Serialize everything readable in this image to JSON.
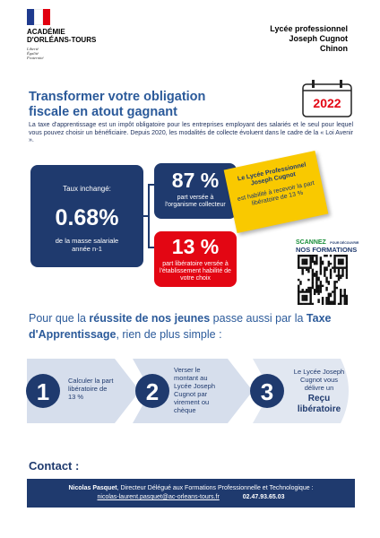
{
  "header": {
    "logo": {
      "line1": "ACADÉMIE",
      "line2": "D'ORLÉANS-TOURS",
      "motto": [
        "Liberté",
        "Égalité",
        "Fraternité"
      ]
    },
    "school": [
      "Lycée professionnel",
      "Joseph Cugnot",
      "Chinon"
    ]
  },
  "title": [
    "Transformer votre obligation",
    "fiscale en atout gagnant"
  ],
  "year": "2022",
  "intro": "La taxe d'apprentissage est un impôt obligatoire pour les entreprises employant des salariés et le seul pour lequel vous pouvez choisir un bénéficiaire. Depuis 2020, les modalités de collecte évoluent dans le cadre de la « Loi Avenir ».",
  "rate": {
    "label": "Taux inchangé:",
    "value": "0.68%",
    "caption": "de la masse salariale année n-1"
  },
  "split": [
    {
      "value": "87 %",
      "caption": "part versée à l'organisme collecteur"
    },
    {
      "value": "13 %",
      "caption": "part libératoire versée à l'établissement habilité de votre choix"
    }
  ],
  "note": {
    "title": "Le Lycée Professionnel Joseph Cugnot",
    "text": "est habilité à recevoir la part libératoire de 13 %"
  },
  "qr": {
    "scan": "SCANNEZ",
    "discover": "POUR DÉCOUVRIR",
    "formations": "NOS FORMATIONS"
  },
  "heading": [
    "Pour que la ",
    "réussite de nos jeunes",
    " passe aussi par la ",
    "Taxe d'Apprentissage",
    ", rien de plus simple :"
  ],
  "steps": [
    {
      "number": "1",
      "text": "Calculer la part libératoire de 13 %"
    },
    {
      "number": "2",
      "text": "Verser le montant au Lycée Joseph Cugnot par virement ou chèque"
    },
    {
      "number": "3",
      "text": "Le Lycée Joseph Cugnot vous délivre un",
      "strong": "Reçu libératoire"
    }
  ],
  "contact": {
    "title": "Contact :",
    "name": "Nicolas Pasquet",
    "role": ", Directeur Délégué aux Formations Professionnelle et Technologique :",
    "email": "nicolas-laurent.pasquet@ac-orleans-tours.fr",
    "phone": "02.47.93.65.03"
  }
}
